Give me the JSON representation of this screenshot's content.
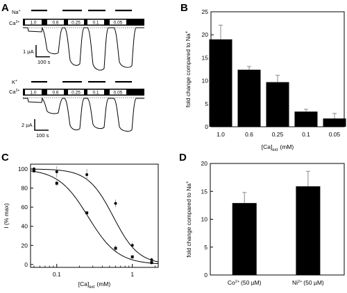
{
  "panels": {
    "A": {
      "label": "A",
      "trace1": {
        "ion_label": "Na",
        "ion_sup": "+",
        "ca_label": "Ca",
        "ca_sup": "2+",
        "concentrations": [
          "1.0",
          "0.6",
          "0.25",
          "0.1",
          "0.05"
        ],
        "scale_current": "1 µA",
        "scale_time": "100 s"
      },
      "trace2": {
        "ion_label": "K",
        "ion_sup": "+",
        "ca_label": "Ca",
        "ca_sup": "2+",
        "concentrations": [
          "1.0",
          "0.6",
          "0.25",
          "0.1",
          "0.05"
        ],
        "scale_current": "2 µA",
        "scale_time": "100 s"
      }
    },
    "B": {
      "label": "B"
    },
    "C": {
      "label": "C"
    },
    "D": {
      "label": "D"
    }
  },
  "chart_data": [
    {
      "panel": "B",
      "type": "bar",
      "categories": [
        "1.0",
        "0.6",
        "0.25",
        "0.1",
        "0.05"
      ],
      "values": [
        19.0,
        12.4,
        9.7,
        3.3,
        1.8
      ],
      "errors": [
        3.1,
        0.7,
        1.5,
        0.5,
        1.1
      ],
      "ylabel": "fold change compared to Na",
      "ylabel_sup": "+",
      "xlabel": "[Ca]",
      "xlabel_sub": "ext",
      "xlabel_unit": "(mM)",
      "ylim": [
        0,
        25
      ],
      "yticks": [
        "0",
        "5",
        "10",
        "15",
        "20",
        "25"
      ],
      "grid": false
    },
    {
      "panel": "C",
      "type": "scatter",
      "xscale": "log",
      "xlim": [
        0.045,
        2.2
      ],
      "ylim": [
        -3,
        105
      ],
      "xticks": [
        "0.1",
        "1"
      ],
      "yticks": [
        "0",
        "20",
        "40",
        "60",
        "80",
        "100"
      ],
      "ylabel": "I (% max)",
      "xlabel": "[Ca]",
      "xlabel_sub": "ext",
      "xlabel_unit": "(mM)",
      "grid": false,
      "series": [
        {
          "x": [
            0.05,
            0.1,
            0.25,
            0.6,
            1.0,
            1.8
          ],
          "y": [
            100,
            97,
            94,
            64,
            20,
            5
          ],
          "errors": [
            2,
            6,
            6,
            4,
            3,
            2
          ],
          "fit": {
            "ec50": 0.56,
            "hill": 2.6
          }
        },
        {
          "x": [
            0.05,
            0.1,
            0.25,
            0.6,
            1.0,
            1.8
          ],
          "y": [
            98,
            85,
            54,
            17,
            8,
            2
          ],
          "errors": [
            2,
            3,
            2,
            3,
            2,
            2
          ],
          "fit": {
            "ec50": 0.26,
            "hill": 2.2
          }
        }
      ]
    },
    {
      "panel": "D",
      "type": "bar",
      "categories": [
        {
          "ion": "Co",
          "sup": "2+",
          "conc": "(50 µM)"
        },
        {
          "ion": "Ni",
          "sup": "2+",
          "conc": "(50 µM)"
        }
      ],
      "values": [
        12.9,
        15.9
      ],
      "errors": [
        1.9,
        2.7
      ],
      "ylabel": "fold change compared to Na",
      "ylabel_sup": "+",
      "ylim": [
        0,
        20
      ],
      "yticks": [
        "0",
        "5",
        "10",
        "15",
        "20"
      ],
      "grid": false
    }
  ]
}
